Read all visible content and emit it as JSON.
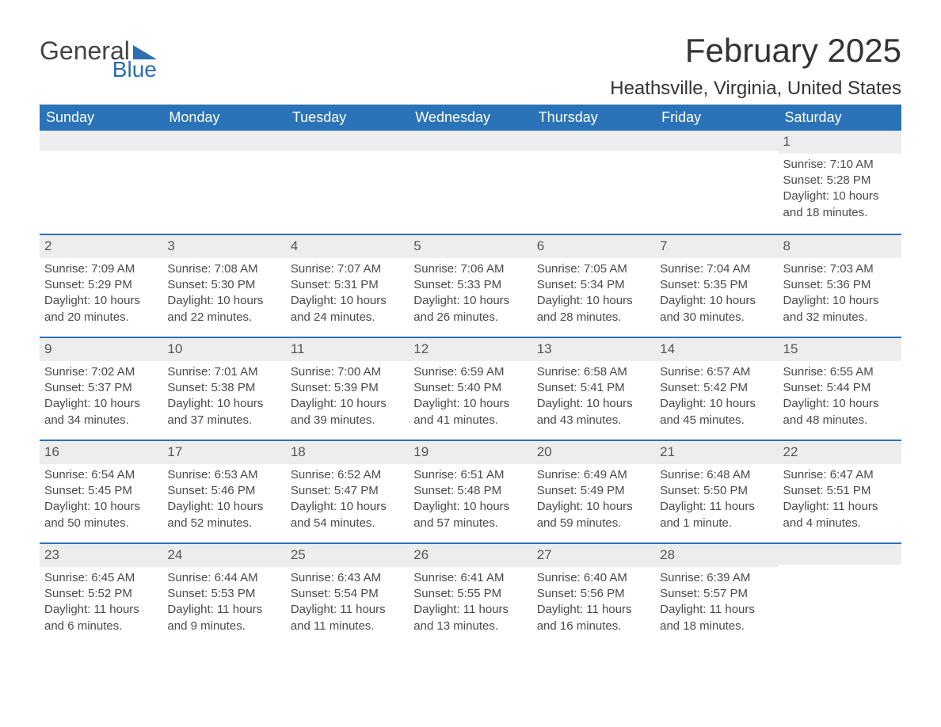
{
  "logo": {
    "word1": "General",
    "word2": "Blue",
    "triangle_color": "#2b6fb0"
  },
  "title": "February 2025",
  "location": "Heathsville, Virginia, United States",
  "colors": {
    "header_bg": "#2b73b8",
    "header_text": "#ffffff",
    "daynum_bg": "#ededed",
    "body_text": "#4a4a4a",
    "rule": "#2b73b8",
    "page_bg": "#ffffff"
  },
  "day_names": [
    "Sunday",
    "Monday",
    "Tuesday",
    "Wednesday",
    "Thursday",
    "Friday",
    "Saturday"
  ],
  "weeks": [
    [
      {
        "empty": true
      },
      {
        "empty": true
      },
      {
        "empty": true
      },
      {
        "empty": true
      },
      {
        "empty": true
      },
      {
        "empty": true
      },
      {
        "day": "1",
        "sunrise": "Sunrise: 7:10 AM",
        "sunset": "Sunset: 5:28 PM",
        "daylight": "Daylight: 10 hours and 18 minutes."
      }
    ],
    [
      {
        "day": "2",
        "sunrise": "Sunrise: 7:09 AM",
        "sunset": "Sunset: 5:29 PM",
        "daylight": "Daylight: 10 hours and 20 minutes."
      },
      {
        "day": "3",
        "sunrise": "Sunrise: 7:08 AM",
        "sunset": "Sunset: 5:30 PM",
        "daylight": "Daylight: 10 hours and 22 minutes."
      },
      {
        "day": "4",
        "sunrise": "Sunrise: 7:07 AM",
        "sunset": "Sunset: 5:31 PM",
        "daylight": "Daylight: 10 hours and 24 minutes."
      },
      {
        "day": "5",
        "sunrise": "Sunrise: 7:06 AM",
        "sunset": "Sunset: 5:33 PM",
        "daylight": "Daylight: 10 hours and 26 minutes."
      },
      {
        "day": "6",
        "sunrise": "Sunrise: 7:05 AM",
        "sunset": "Sunset: 5:34 PM",
        "daylight": "Daylight: 10 hours and 28 minutes."
      },
      {
        "day": "7",
        "sunrise": "Sunrise: 7:04 AM",
        "sunset": "Sunset: 5:35 PM",
        "daylight": "Daylight: 10 hours and 30 minutes."
      },
      {
        "day": "8",
        "sunrise": "Sunrise: 7:03 AM",
        "sunset": "Sunset: 5:36 PM",
        "daylight": "Daylight: 10 hours and 32 minutes."
      }
    ],
    [
      {
        "day": "9",
        "sunrise": "Sunrise: 7:02 AM",
        "sunset": "Sunset: 5:37 PM",
        "daylight": "Daylight: 10 hours and 34 minutes."
      },
      {
        "day": "10",
        "sunrise": "Sunrise: 7:01 AM",
        "sunset": "Sunset: 5:38 PM",
        "daylight": "Daylight: 10 hours and 37 minutes."
      },
      {
        "day": "11",
        "sunrise": "Sunrise: 7:00 AM",
        "sunset": "Sunset: 5:39 PM",
        "daylight": "Daylight: 10 hours and 39 minutes."
      },
      {
        "day": "12",
        "sunrise": "Sunrise: 6:59 AM",
        "sunset": "Sunset: 5:40 PM",
        "daylight": "Daylight: 10 hours and 41 minutes."
      },
      {
        "day": "13",
        "sunrise": "Sunrise: 6:58 AM",
        "sunset": "Sunset: 5:41 PM",
        "daylight": "Daylight: 10 hours and 43 minutes."
      },
      {
        "day": "14",
        "sunrise": "Sunrise: 6:57 AM",
        "sunset": "Sunset: 5:42 PM",
        "daylight": "Daylight: 10 hours and 45 minutes."
      },
      {
        "day": "15",
        "sunrise": "Sunrise: 6:55 AM",
        "sunset": "Sunset: 5:44 PM",
        "daylight": "Daylight: 10 hours and 48 minutes."
      }
    ],
    [
      {
        "day": "16",
        "sunrise": "Sunrise: 6:54 AM",
        "sunset": "Sunset: 5:45 PM",
        "daylight": "Daylight: 10 hours and 50 minutes."
      },
      {
        "day": "17",
        "sunrise": "Sunrise: 6:53 AM",
        "sunset": "Sunset: 5:46 PM",
        "daylight": "Daylight: 10 hours and 52 minutes."
      },
      {
        "day": "18",
        "sunrise": "Sunrise: 6:52 AM",
        "sunset": "Sunset: 5:47 PM",
        "daylight": "Daylight: 10 hours and 54 minutes."
      },
      {
        "day": "19",
        "sunrise": "Sunrise: 6:51 AM",
        "sunset": "Sunset: 5:48 PM",
        "daylight": "Daylight: 10 hours and 57 minutes."
      },
      {
        "day": "20",
        "sunrise": "Sunrise: 6:49 AM",
        "sunset": "Sunset: 5:49 PM",
        "daylight": "Daylight: 10 hours and 59 minutes."
      },
      {
        "day": "21",
        "sunrise": "Sunrise: 6:48 AM",
        "sunset": "Sunset: 5:50 PM",
        "daylight": "Daylight: 11 hours and 1 minute."
      },
      {
        "day": "22",
        "sunrise": "Sunrise: 6:47 AM",
        "sunset": "Sunset: 5:51 PM",
        "daylight": "Daylight: 11 hours and 4 minutes."
      }
    ],
    [
      {
        "day": "23",
        "sunrise": "Sunrise: 6:45 AM",
        "sunset": "Sunset: 5:52 PM",
        "daylight": "Daylight: 11 hours and 6 minutes."
      },
      {
        "day": "24",
        "sunrise": "Sunrise: 6:44 AM",
        "sunset": "Sunset: 5:53 PM",
        "daylight": "Daylight: 11 hours and 9 minutes."
      },
      {
        "day": "25",
        "sunrise": "Sunrise: 6:43 AM",
        "sunset": "Sunset: 5:54 PM",
        "daylight": "Daylight: 11 hours and 11 minutes."
      },
      {
        "day": "26",
        "sunrise": "Sunrise: 6:41 AM",
        "sunset": "Sunset: 5:55 PM",
        "daylight": "Daylight: 11 hours and 13 minutes."
      },
      {
        "day": "27",
        "sunrise": "Sunrise: 6:40 AM",
        "sunset": "Sunset: 5:56 PM",
        "daylight": "Daylight: 11 hours and 16 minutes."
      },
      {
        "day": "28",
        "sunrise": "Sunrise: 6:39 AM",
        "sunset": "Sunset: 5:57 PM",
        "daylight": "Daylight: 11 hours and 18 minutes."
      },
      {
        "empty": true
      }
    ]
  ]
}
